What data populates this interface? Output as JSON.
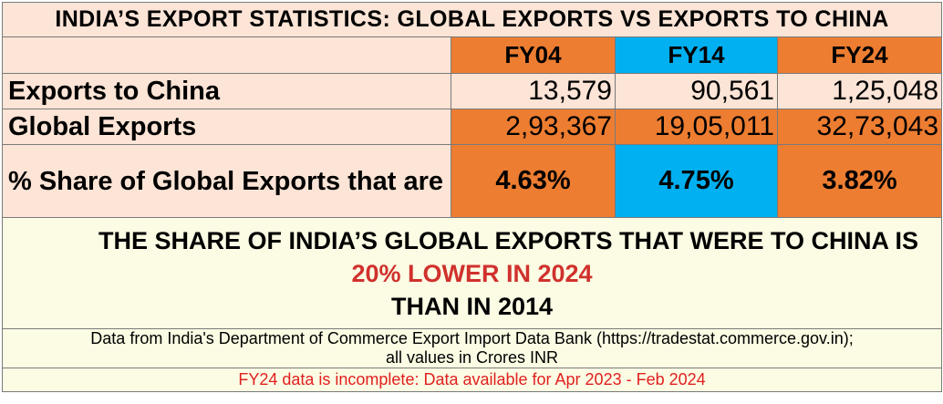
{
  "title": "INDIA’S EXPORT STATISTICS: GLOBAL EXPORTS VS EXPORTS TO CHINA",
  "columns": [
    "FY04",
    "FY14",
    "FY24"
  ],
  "rows": [
    {
      "label": "Exports to China",
      "values": [
        "13,579",
        "90,561",
        "1,25,048"
      ]
    },
    {
      "label": "Global Exports",
      "values": [
        "2,93,367",
        "19,05,011",
        "32,73,043"
      ]
    },
    {
      "label": "% Share of Global Exports that are to China",
      "values": [
        "4.63%",
        "4.75%",
        "3.82%"
      ]
    }
  ],
  "summary": {
    "line1": "THE SHARE OF INDIA’S GLOBAL EXPORTS THAT WERE TO CHINA IS",
    "line2": "20% LOWER IN 2024",
    "line3": "THAN IN 2014"
  },
  "source": {
    "line1": "Data from India's Department of Commerce Export Import Data Bank (https://tradestat.commerce.gov.in);",
    "line2": "all values in Crores INR"
  },
  "note": "FY24 data is incomplete: Data available for Apr 2023 - Feb 2024",
  "colors": {
    "header_bg": "#fce4d6",
    "fy04": "#ed7d31",
    "fy14": "#00b0f0",
    "fy24": "#ed7d31",
    "summary_bg": "#fcfce4",
    "highlight_red": "#d0312d",
    "note_red": "#e02020"
  }
}
